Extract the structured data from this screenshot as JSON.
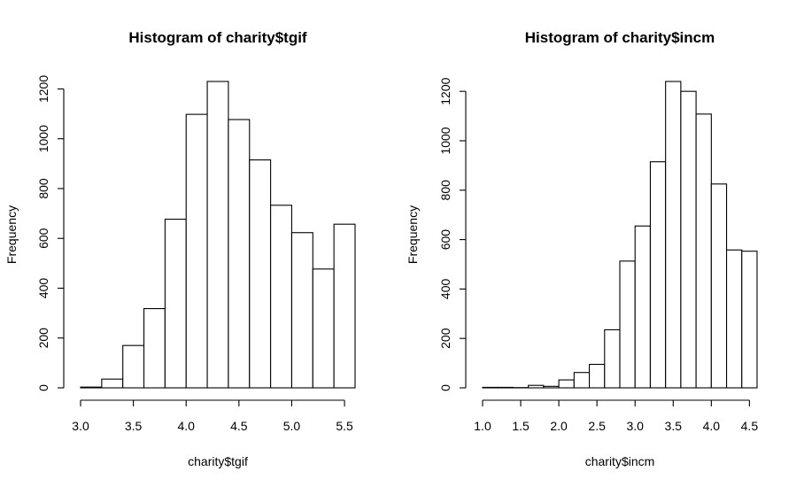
{
  "chart_data": [
    {
      "type": "bar",
      "title": "Histogram of charity$tgif",
      "xlabel": "charity$tgif",
      "ylabel": "Frequency",
      "bin_edges": [
        3.0,
        3.2,
        3.4,
        3.6,
        3.8,
        4.0,
        4.2,
        4.4,
        4.6,
        4.8,
        5.0,
        5.2,
        5.4,
        5.6
      ],
      "values": [
        3,
        35,
        170,
        318,
        677,
        1098,
        1230,
        1077,
        915,
        733,
        623,
        477,
        657
      ],
      "x_ticks": [
        3.0,
        3.5,
        4.0,
        4.5,
        5.0,
        5.5
      ],
      "x_tick_labels": [
        "3.0",
        "3.5",
        "4.0",
        "4.5",
        "5.0",
        "5.5"
      ],
      "y_ticks": [
        0,
        200,
        400,
        600,
        800,
        1000,
        1200
      ],
      "y_tick_labels": [
        "0",
        "200",
        "400",
        "600",
        "800",
        "1000",
        "1200"
      ],
      "xlim": [
        3.0,
        5.6
      ],
      "ylim": [
        0,
        1230
      ],
      "grid": false,
      "legend": "none"
    },
    {
      "type": "bar",
      "title": "Histogram of charity$incm",
      "xlabel": "charity$incm",
      "ylabel": "Frequency",
      "bin_edges": [
        1.0,
        1.2,
        1.4,
        1.6,
        1.8,
        2.0,
        2.2,
        2.4,
        2.6,
        2.8,
        3.0,
        3.2,
        3.4,
        3.6,
        3.8,
        4.0,
        4.2,
        4.4,
        4.6
      ],
      "values": [
        2,
        2,
        1,
        10,
        6,
        32,
        62,
        95,
        235,
        513,
        655,
        915,
        1240,
        1200,
        1108,
        825,
        558,
        553
      ],
      "x_ticks": [
        1.0,
        1.5,
        2.0,
        2.5,
        3.0,
        3.5,
        4.0,
        4.5
      ],
      "x_tick_labels": [
        "1.0",
        "1.5",
        "2.0",
        "2.5",
        "3.0",
        "3.5",
        "4.0",
        "4.5"
      ],
      "y_ticks": [
        0,
        200,
        400,
        600,
        800,
        1000,
        1200
      ],
      "y_tick_labels": [
        "0",
        "200",
        "400",
        "600",
        "800",
        "1000",
        "1200"
      ],
      "xlim": [
        1.0,
        4.6
      ],
      "ylim": [
        0,
        1240
      ],
      "grid": false,
      "legend": "none"
    }
  ]
}
